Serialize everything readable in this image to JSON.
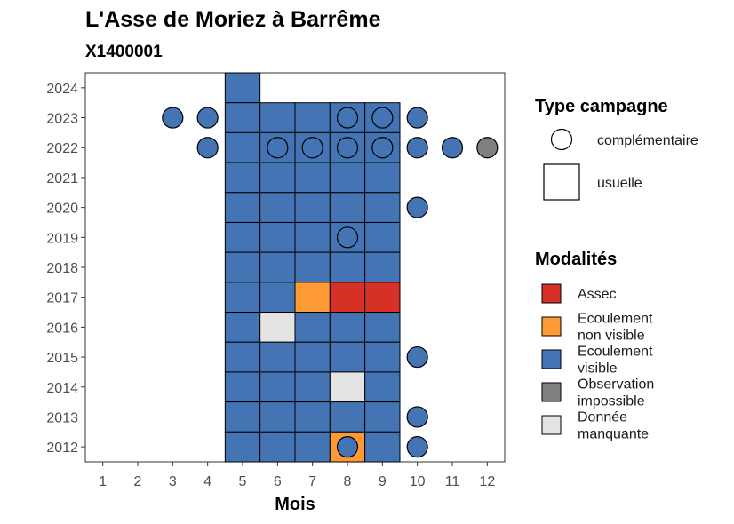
{
  "chart_data": {
    "type": "heatmap",
    "title": "L'Asse de Moriez à Barrême",
    "subtitle": "X1400001",
    "xlabel": "Mois",
    "ylabel": "",
    "x_ticks": [
      1,
      2,
      3,
      4,
      5,
      6,
      7,
      8,
      9,
      10,
      11,
      12
    ],
    "y_ticks": [
      2012,
      2013,
      2014,
      2015,
      2016,
      2017,
      2018,
      2019,
      2020,
      2021,
      2022,
      2023,
      2024
    ],
    "xlim": [
      0.5,
      12.5
    ],
    "ylim": [
      2011.5,
      2024.5
    ],
    "grid": false,
    "colors": {
      "Assec": "#d73027",
      "Ecoulement non visible": "#fd9a35",
      "Ecoulement visible": "#4574b4",
      "Observation impossible": "#7f7f7f",
      "Donnée manquante": "#e4e4e4"
    },
    "usuelle": [
      {
        "month": 5,
        "year": 2024,
        "modalite": "Ecoulement visible"
      },
      {
        "month": 5,
        "year": 2023,
        "modalite": "Ecoulement visible"
      },
      {
        "month": 6,
        "year": 2023,
        "modalite": "Ecoulement visible"
      },
      {
        "month": 7,
        "year": 2023,
        "modalite": "Ecoulement visible"
      },
      {
        "month": 8,
        "year": 2023,
        "modalite": "Ecoulement visible"
      },
      {
        "month": 9,
        "year": 2023,
        "modalite": "Ecoulement visible"
      },
      {
        "month": 5,
        "year": 2022,
        "modalite": "Ecoulement visible"
      },
      {
        "month": 6,
        "year": 2022,
        "modalite": "Ecoulement visible"
      },
      {
        "month": 7,
        "year": 2022,
        "modalite": "Ecoulement visible"
      },
      {
        "month": 8,
        "year": 2022,
        "modalite": "Ecoulement visible"
      },
      {
        "month": 9,
        "year": 2022,
        "modalite": "Ecoulement visible"
      },
      {
        "month": 5,
        "year": 2021,
        "modalite": "Ecoulement visible"
      },
      {
        "month": 6,
        "year": 2021,
        "modalite": "Ecoulement visible"
      },
      {
        "month": 7,
        "year": 2021,
        "modalite": "Ecoulement visible"
      },
      {
        "month": 8,
        "year": 2021,
        "modalite": "Ecoulement visible"
      },
      {
        "month": 9,
        "year": 2021,
        "modalite": "Ecoulement visible"
      },
      {
        "month": 5,
        "year": 2020,
        "modalite": "Ecoulement visible"
      },
      {
        "month": 6,
        "year": 2020,
        "modalite": "Ecoulement visible"
      },
      {
        "month": 7,
        "year": 2020,
        "modalite": "Ecoulement visible"
      },
      {
        "month": 8,
        "year": 2020,
        "modalite": "Ecoulement visible"
      },
      {
        "month": 9,
        "year": 2020,
        "modalite": "Ecoulement visible"
      },
      {
        "month": 5,
        "year": 2019,
        "modalite": "Ecoulement visible"
      },
      {
        "month": 6,
        "year": 2019,
        "modalite": "Ecoulement visible"
      },
      {
        "month": 7,
        "year": 2019,
        "modalite": "Ecoulement visible"
      },
      {
        "month": 8,
        "year": 2019,
        "modalite": "Ecoulement visible"
      },
      {
        "month": 9,
        "year": 2019,
        "modalite": "Ecoulement visible"
      },
      {
        "month": 5,
        "year": 2018,
        "modalite": "Ecoulement visible"
      },
      {
        "month": 6,
        "year": 2018,
        "modalite": "Ecoulement visible"
      },
      {
        "month": 7,
        "year": 2018,
        "modalite": "Ecoulement visible"
      },
      {
        "month": 8,
        "year": 2018,
        "modalite": "Ecoulement visible"
      },
      {
        "month": 9,
        "year": 2018,
        "modalite": "Ecoulement visible"
      },
      {
        "month": 5,
        "year": 2017,
        "modalite": "Ecoulement visible"
      },
      {
        "month": 6,
        "year": 2017,
        "modalite": "Ecoulement visible"
      },
      {
        "month": 7,
        "year": 2017,
        "modalite": "Ecoulement non visible"
      },
      {
        "month": 8,
        "year": 2017,
        "modalite": "Assec"
      },
      {
        "month": 9,
        "year": 2017,
        "modalite": "Assec"
      },
      {
        "month": 5,
        "year": 2016,
        "modalite": "Ecoulement visible"
      },
      {
        "month": 6,
        "year": 2016,
        "modalite": "Donnée manquante"
      },
      {
        "month": 7,
        "year": 2016,
        "modalite": "Ecoulement visible"
      },
      {
        "month": 8,
        "year": 2016,
        "modalite": "Ecoulement visible"
      },
      {
        "month": 9,
        "year": 2016,
        "modalite": "Ecoulement visible"
      },
      {
        "month": 5,
        "year": 2015,
        "modalite": "Ecoulement visible"
      },
      {
        "month": 6,
        "year": 2015,
        "modalite": "Ecoulement visible"
      },
      {
        "month": 7,
        "year": 2015,
        "modalite": "Ecoulement visible"
      },
      {
        "month": 8,
        "year": 2015,
        "modalite": "Ecoulement visible"
      },
      {
        "month": 9,
        "year": 2015,
        "modalite": "Ecoulement visible"
      },
      {
        "month": 5,
        "year": 2014,
        "modalite": "Ecoulement visible"
      },
      {
        "month": 6,
        "year": 2014,
        "modalite": "Ecoulement visible"
      },
      {
        "month": 7,
        "year": 2014,
        "modalite": "Ecoulement visible"
      },
      {
        "month": 8,
        "year": 2014,
        "modalite": "Donnée manquante"
      },
      {
        "month": 9,
        "year": 2014,
        "modalite": "Ecoulement visible"
      },
      {
        "month": 5,
        "year": 2013,
        "modalite": "Ecoulement visible"
      },
      {
        "month": 6,
        "year": 2013,
        "modalite": "Ecoulement visible"
      },
      {
        "month": 7,
        "year": 2013,
        "modalite": "Ecoulement visible"
      },
      {
        "month": 8,
        "year": 2013,
        "modalite": "Ecoulement visible"
      },
      {
        "month": 9,
        "year": 2013,
        "modalite": "Ecoulement visible"
      },
      {
        "month": 5,
        "year": 2012,
        "modalite": "Ecoulement visible"
      },
      {
        "month": 6,
        "year": 2012,
        "modalite": "Ecoulement visible"
      },
      {
        "month": 7,
        "year": 2012,
        "modalite": "Ecoulement visible"
      },
      {
        "month": 8,
        "year": 2012,
        "modalite": "Ecoulement non visible"
      },
      {
        "month": 9,
        "year": 2012,
        "modalite": "Ecoulement visible"
      }
    ],
    "complementaire": [
      {
        "month": 3,
        "year": 2023,
        "modalite": "Ecoulement visible"
      },
      {
        "month": 4,
        "year": 2023,
        "modalite": "Ecoulement visible"
      },
      {
        "month": 8,
        "year": 2023,
        "modalite": "Ecoulement visible"
      },
      {
        "month": 9,
        "year": 2023,
        "modalite": "Ecoulement visible"
      },
      {
        "month": 10,
        "year": 2023,
        "modalite": "Ecoulement visible"
      },
      {
        "month": 4,
        "year": 2022,
        "modalite": "Ecoulement visible"
      },
      {
        "month": 6,
        "year": 2022,
        "modalite": "Ecoulement visible"
      },
      {
        "month": 7,
        "year": 2022,
        "modalite": "Ecoulement visible"
      },
      {
        "month": 8,
        "year": 2022,
        "modalite": "Ecoulement visible"
      },
      {
        "month": 9,
        "year": 2022,
        "modalite": "Ecoulement visible"
      },
      {
        "month": 10,
        "year": 2022,
        "modalite": "Ecoulement visible"
      },
      {
        "month": 11,
        "year": 2022,
        "modalite": "Ecoulement visible"
      },
      {
        "month": 12,
        "year": 2022,
        "modalite": "Observation impossible"
      },
      {
        "month": 10,
        "year": 2020,
        "modalite": "Ecoulement visible"
      },
      {
        "month": 8,
        "year": 2019,
        "modalite": "Ecoulement visible"
      },
      {
        "month": 10,
        "year": 2015,
        "modalite": "Ecoulement visible"
      },
      {
        "month": 10,
        "year": 2013,
        "modalite": "Ecoulement visible"
      },
      {
        "month": 8,
        "year": 2012,
        "modalite": "Ecoulement visible"
      },
      {
        "month": 10,
        "year": 2012,
        "modalite": "Ecoulement visible"
      }
    ],
    "legend_type": {
      "title": "Type campagne",
      "items": [
        "complémentaire",
        "usuelle"
      ]
    },
    "legend_modalites": {
      "title": "Modalités",
      "items": [
        {
          "lines": [
            "Assec"
          ],
          "key": "Assec"
        },
        {
          "lines": [
            "Ecoulement",
            "non visible"
          ],
          "key": "Ecoulement non visible"
        },
        {
          "lines": [
            "Ecoulement",
            "visible"
          ],
          "key": "Ecoulement visible"
        },
        {
          "lines": [
            "Observation",
            "impossible"
          ],
          "key": "Observation impossible"
        },
        {
          "lines": [
            "Donnée",
            "manquante"
          ],
          "key": "Donnée manquante"
        }
      ]
    }
  }
}
